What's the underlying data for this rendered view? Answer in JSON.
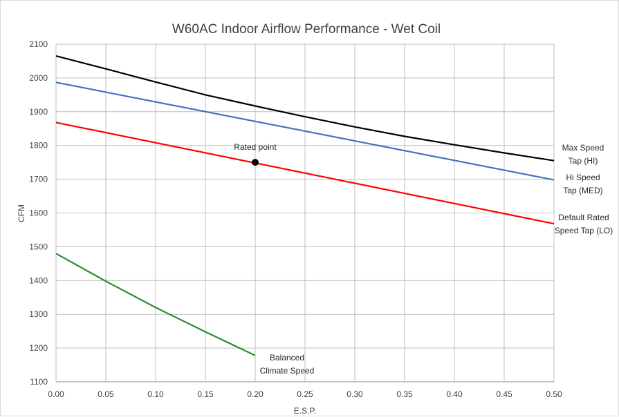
{
  "chart_data": {
    "type": "line",
    "title": "W60AC Indoor Airflow Performance - Wet Coil",
    "xlabel": "E.S.P.",
    "ylabel": "CFM",
    "xlim": [
      0,
      0.5
    ],
    "ylim": [
      1100,
      2100
    ],
    "x_ticks": [
      "0.00",
      "0.05",
      "0.10",
      "0.15",
      "0.20",
      "0.25",
      "0.30",
      "0.35",
      "0.40",
      "0.45",
      "0.50"
    ],
    "y_ticks": [
      "1100",
      "1200",
      "1300",
      "1400",
      "1500",
      "1600",
      "1700",
      "1800",
      "1900",
      "2000",
      "2100"
    ],
    "grid": true,
    "series": [
      {
        "name": "Max Speed Tap (HI)",
        "color": "#000000",
        "x": [
          0,
          0.05,
          0.1,
          0.15,
          0.2,
          0.25,
          0.3,
          0.35,
          0.4,
          0.45,
          0.5
        ],
        "y": [
          2065,
          2027,
          1988,
          1950,
          1917,
          1885,
          1855,
          1827,
          1802,
          1778,
          1755
        ]
      },
      {
        "name": "Hi Speed Tap (MED)",
        "color": "#4472c4",
        "x": [
          0,
          0.5
        ],
        "y": [
          1987,
          1698
        ]
      },
      {
        "name": "Default Rated Speed Tap (LO)",
        "color": "#ff0000",
        "x": [
          0,
          0.5
        ],
        "y": [
          1868,
          1568
        ]
      },
      {
        "name": "Balanced Climate Speed",
        "color": "#2e8b2e",
        "x": [
          0,
          0.05,
          0.1,
          0.15,
          0.2
        ],
        "y": [
          1480,
          1398,
          1320,
          1248,
          1178
        ]
      }
    ],
    "points": [
      {
        "label": "Rated point",
        "x": 0.2,
        "y": 1750,
        "color": "#000000"
      }
    ],
    "annotations": [
      {
        "lines": [
          "Max Speed",
          "Tap (HI)"
        ]
      },
      {
        "lines": [
          "Hi Speed",
          "Tap (MED)"
        ]
      },
      {
        "lines": [
          "Default Rated",
          "Speed Tap (LO)"
        ]
      },
      {
        "lines": [
          "Balanced",
          "Climate Speed"
        ]
      }
    ]
  }
}
